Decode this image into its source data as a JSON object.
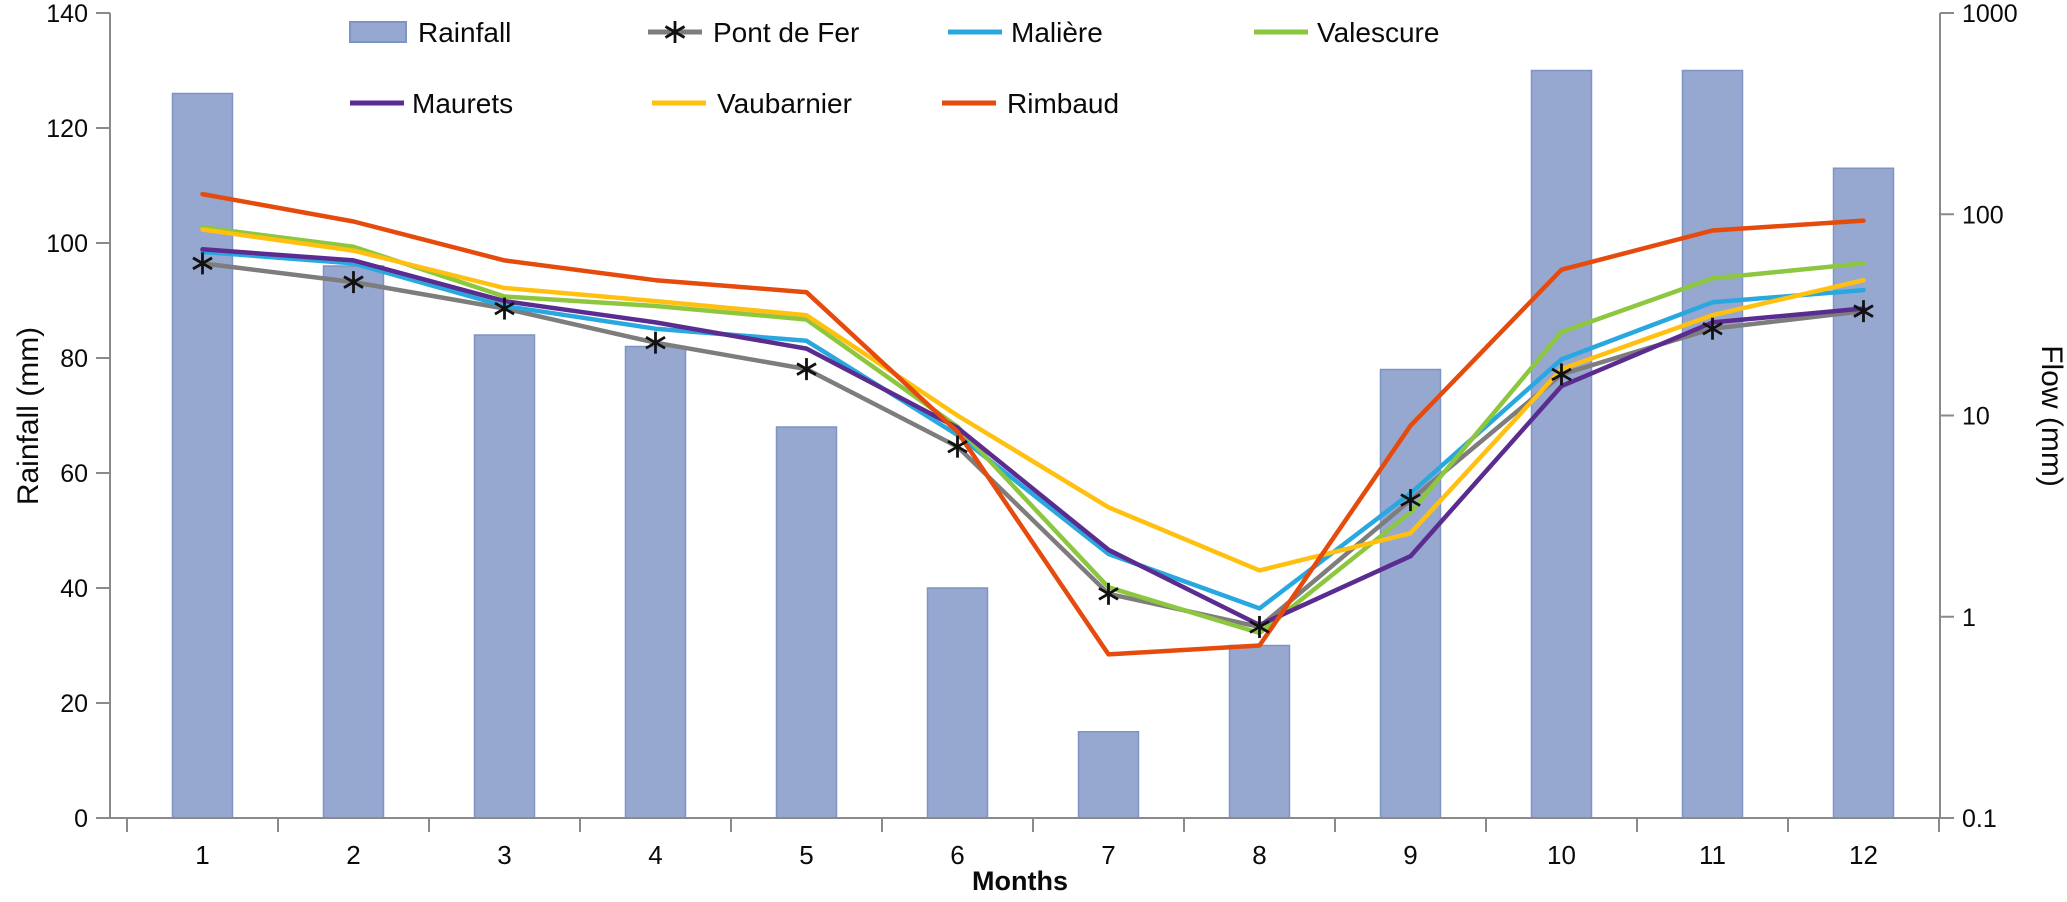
{
  "chart_data": {
    "type": "combo-bar-line",
    "title": "",
    "xlabel": "Months",
    "ylabel_left": "Rainfall (mm)",
    "ylabel_right": "Flow (mm)",
    "x_categories": [
      "1",
      "2",
      "3",
      "4",
      "5",
      "6",
      "7",
      "8",
      "9",
      "10",
      "11",
      "12"
    ],
    "left_axis": {
      "scale": "linear",
      "min": 0,
      "max": 140,
      "ticks": [
        0,
        20,
        40,
        60,
        80,
        100,
        120,
        140
      ],
      "label": "Rainfall (mm)"
    },
    "right_axis": {
      "scale": "log",
      "min": 0.1,
      "max": 1000,
      "ticks": [
        0.1,
        1,
        10,
        100,
        1000
      ],
      "tick_labels": [
        "0.1",
        "1",
        "10",
        "100",
        "1000"
      ],
      "label": "Flow (mm)"
    },
    "grid": "off",
    "legend_position": "top, two rows",
    "bar_series": {
      "name": "Rainfall",
      "axis": "left",
      "fill_color": "#96A7D0",
      "border_color": "#7E94C4",
      "values": [
        126,
        96,
        84,
        82,
        68,
        40,
        15,
        30,
        78,
        130,
        130,
        113
      ]
    },
    "line_series": [
      {
        "name": "Pont de Fer",
        "axis": "right",
        "color": "#7D7D7D",
        "marker": "asterisk",
        "marker_color": "#111111",
        "values": [
          57,
          46,
          34,
          23,
          17,
          7.0,
          1.3,
          0.89,
          3.8,
          16,
          27,
          33
        ]
      },
      {
        "name": "Malière",
        "axis": "right",
        "color": "#29A8E0",
        "marker": "none",
        "values": [
          65,
          57,
          35,
          27,
          23.5,
          8.0,
          2.05,
          1.1,
          4.1,
          19,
          36.5,
          42
        ]
      },
      {
        "name": "Valescure",
        "axis": "right",
        "color": "#8DC63F",
        "marker": "none",
        "values": [
          86,
          69,
          39,
          35,
          30,
          8.8,
          1.4,
          0.83,
          3.3,
          26,
          48,
          57
        ]
      },
      {
        "name": "Maurets",
        "axis": "right",
        "color": "#5B2C8F",
        "marker": "none",
        "values": [
          67,
          59,
          37,
          29,
          21.5,
          8.7,
          2.15,
          0.91,
          2.0,
          14,
          29,
          34
        ]
      },
      {
        "name": "Vaubarnier",
        "axis": "right",
        "color": "#FFC010",
        "marker": "none",
        "values": [
          84,
          66,
          43,
          37,
          31.5,
          10,
          3.5,
          1.7,
          2.6,
          17,
          31.5,
          47
        ]
      },
      {
        "name": "Rimbaud",
        "axis": "right",
        "color": "#E64B0E",
        "marker": "none",
        "values": [
          126,
          92,
          59,
          47,
          41,
          8.3,
          0.65,
          0.72,
          8.9,
          53,
          83,
          93
        ]
      }
    ],
    "legend_items": [
      {
        "label": "Rainfall",
        "swatch": "bar",
        "series": "Rainfall"
      },
      {
        "label": "Pont de Fer",
        "swatch": "line-asterisk",
        "series": "Pont de Fer"
      },
      {
        "label": "Malière",
        "swatch": "line",
        "series": "Malière"
      },
      {
        "label": "Valescure",
        "swatch": "line",
        "series": "Valescure"
      },
      {
        "label": "Maurets",
        "swatch": "line",
        "series": "Maurets"
      },
      {
        "label": "Vaubarnier",
        "swatch": "line",
        "series": "Vaubarnier"
      },
      {
        "label": "Rimbaud",
        "swatch": "line",
        "series": "Rimbaud"
      }
    ]
  }
}
